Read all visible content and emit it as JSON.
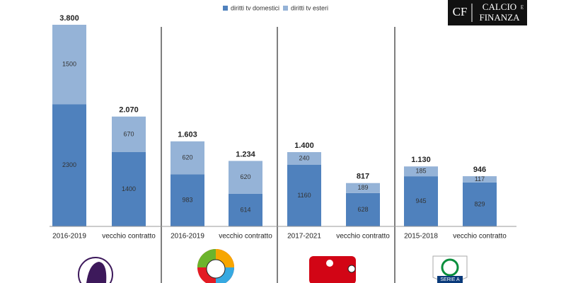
{
  "chart_data": {
    "type": "stacked_bar",
    "categories": [
      "2016-2019",
      "vecchio contratto",
      "2016-2019",
      "vecchio contratto",
      "2017-2021",
      "vecchio contratto",
      "2015-2018",
      "vecchio contratto"
    ],
    "series": [
      {
        "name": "diritti tv domestici",
        "color": "#4f81bd",
        "values": [
          2300,
          1400,
          983,
          614,
          1160,
          628,
          945,
          829
        ]
      },
      {
        "name": "diritti tv esteri",
        "color": "#95b3d7",
        "values": [
          1500,
          670,
          620,
          620,
          240,
          189,
          185,
          117
        ]
      }
    ],
    "totals": {
      "values": [
        3800,
        2070,
        1603,
        1234,
        1400,
        817,
        1130,
        946
      ],
      "value_labels": [
        "3.800",
        "2.070",
        "1.603",
        "1.234",
        "1.400",
        "817",
        "1.130",
        "946"
      ]
    },
    "ylim": [
      0,
      3800
    ],
    "legend": "top",
    "brand": {
      "mark": "CF",
      "line1": "CALCIO",
      "joiner": "E",
      "line2": "FINANZA"
    },
    "logo_text": "SERIE A"
  }
}
